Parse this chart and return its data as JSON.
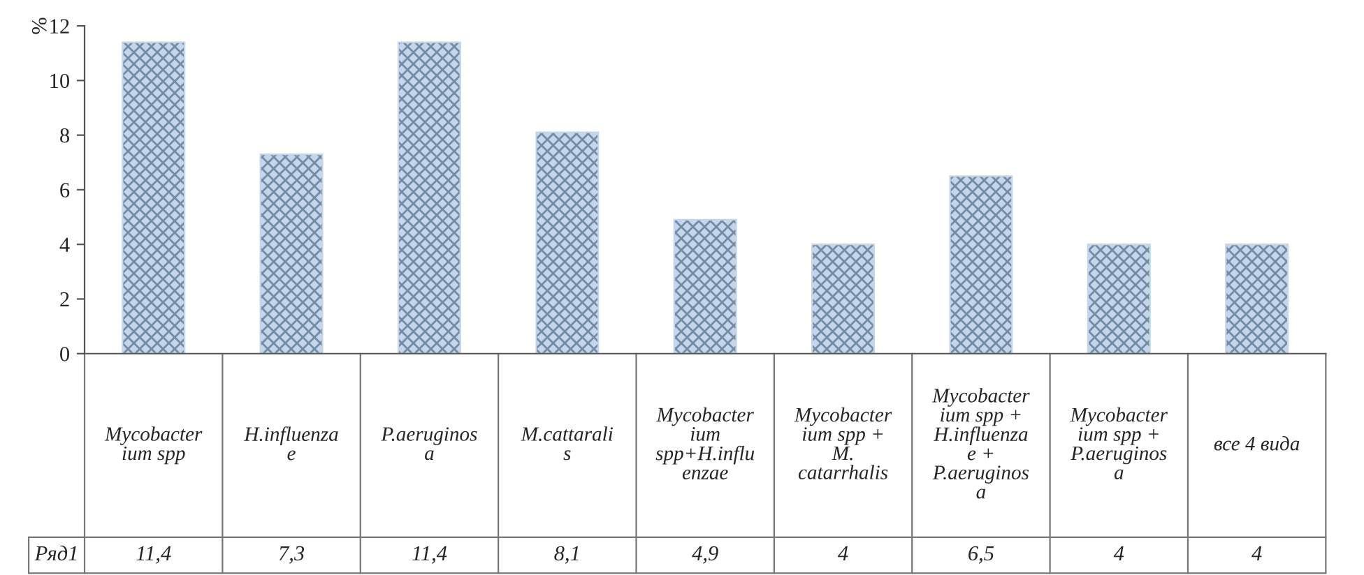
{
  "chart_data": {
    "type": "bar",
    "ylabel": "%",
    "categories": [
      "Mycobacter\nium spp",
      "H.influenza\ne",
      "P.aeruginos\na",
      "M.cattarali\ns",
      "Mycobacter\nium\nspp+H.influ\nenzae",
      "Mycobacter\nium spp +\nM.\ncatarrhalis",
      "Mycobacter\nium spp +\nH.influenza\ne +\nP.aeruginos\na",
      "Mycobacter\nium spp +\nP.aeruginos\na",
      "все 4 вида"
    ],
    "series": [
      {
        "name": "Ряд1",
        "color": "#c6d6ea",
        "values": [
          11.4,
          7.3,
          11.4,
          8.1,
          4.9,
          4,
          6.5,
          4,
          4
        ],
        "value_labels": [
          "11,4",
          "7,3",
          "11,4",
          "8,1",
          "4,9",
          "4",
          "6,5",
          "4",
          "4"
        ]
      }
    ],
    "ylim": [
      0,
      12
    ],
    "yticks": [
      0,
      2,
      4,
      6,
      8,
      10,
      12
    ],
    "grid": false,
    "legend": false
  }
}
